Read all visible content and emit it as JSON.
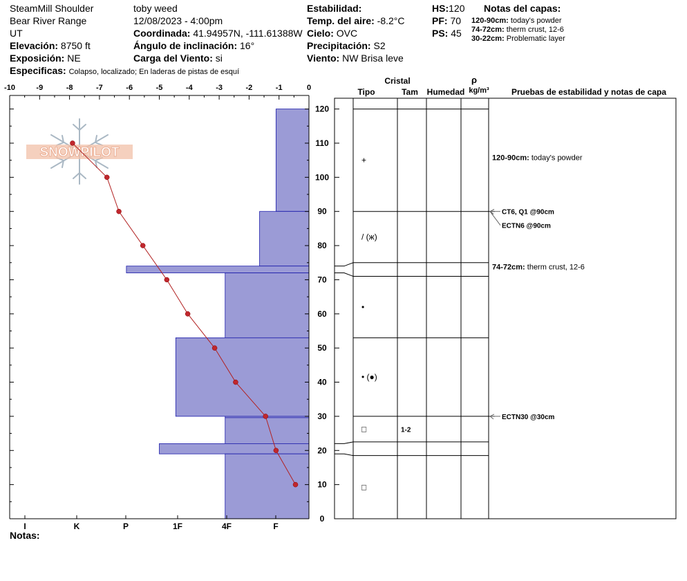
{
  "header": {
    "location": "SteamMill Shoulder",
    "range": "Bear River Range",
    "state": "UT",
    "elevation_label": "Elevación:",
    "elevation": "8750 ft",
    "aspect_label": "Exposición:",
    "aspect": "NE",
    "specifics_label": "Especificas:",
    "specifics": "Colapso, localizado;  En laderas de pistas de esquí",
    "observer": "toby weed",
    "datetime": "12/08/2023 - 4:00pm",
    "coord_label": "Coordinada:",
    "coord": "41.94957N, -111.61388W",
    "slope_label": "Ángulo de inclinación:",
    "slope": "16°",
    "wind_load_label": "Carga del Viento:",
    "wind_load": "si",
    "stability_label": "Estabilidad:",
    "stability": "",
    "air_temp_label": "Temp. del aire:",
    "air_temp": "-8.2°C",
    "sky_label": "Cielo:",
    "sky": "OVC",
    "precip_label": "Precipitación:",
    "precip": "S2",
    "wind_label": "Viento:",
    "wind": "NW Brisa leve",
    "hs_label": "HS:",
    "hs": "120",
    "pf_label": "PF:",
    "pf": "70",
    "ps_label": "PS:",
    "ps": "45",
    "layer_notes_title": "Notas del capas:",
    "layer_notes": [
      {
        "range": "120-90cm:",
        "text": "today's powder"
      },
      {
        "range": "74-72cm:",
        "text": "therm crust, 12-6"
      },
      {
        "range": "30-22cm:",
        "text": "Problematic layer"
      }
    ]
  },
  "logo": {
    "text": "SNOWPILOT"
  },
  "notes_label": "Notas:",
  "columns": {
    "crystal": "Cristal",
    "type": "Tipo",
    "size": "Tam",
    "moisture": "Humedad",
    "density_symbol": "ρ",
    "density_unit": "kg/m³",
    "tests": "Pruebas de estabilidad y notas de capa"
  },
  "chart_data": {
    "type": "profile",
    "temp_axis": {
      "ticks": [
        -10,
        -9,
        -8,
        -7,
        -6,
        -5,
        -4,
        -3,
        -2,
        -1,
        0
      ],
      "range": [
        -10,
        0
      ]
    },
    "depth_axis": {
      "ticks": [
        0,
        10,
        20,
        30,
        40,
        50,
        60,
        70,
        80,
        90,
        100,
        110,
        120
      ],
      "range": [
        0,
        120
      ]
    },
    "hardness_axis": {
      "labels": [
        "I",
        "K",
        "P",
        "1F",
        "4F",
        "F"
      ]
    },
    "hardness_layers": [
      {
        "top": 120,
        "bottom": 90,
        "temp_extent": -1.1
      },
      {
        "top": 90,
        "bottom": 74,
        "temp_extent": -1.65
      },
      {
        "top": 74,
        "bottom": 72,
        "temp_extent": -6.1
      },
      {
        "top": 72,
        "bottom": 53,
        "temp_extent": -2.8
      },
      {
        "top": 53,
        "bottom": 30,
        "temp_extent": -4.45
      },
      {
        "top": 30,
        "bottom": 29.6,
        "temp_extent": -2.8
      },
      {
        "top": 29.6,
        "bottom": 22,
        "temp_extent": -2.8
      },
      {
        "top": 22,
        "bottom": 19,
        "temp_extent": -5.0
      },
      {
        "top": 19,
        "bottom": 0,
        "temp_extent": -2.8
      }
    ],
    "temperature_profile": [
      {
        "depth": 110,
        "temp": -7.9
      },
      {
        "depth": 100,
        "temp": -6.75
      },
      {
        "depth": 90,
        "temp": -6.35
      },
      {
        "depth": 80,
        "temp": -5.55
      },
      {
        "depth": 70,
        "temp": -4.75
      },
      {
        "depth": 60,
        "temp": -4.05
      },
      {
        "depth": 50,
        "temp": -3.15
      },
      {
        "depth": 40,
        "temp": -2.45
      },
      {
        "depth": 30,
        "temp": -1.45
      },
      {
        "depth": 20,
        "temp": -1.1
      },
      {
        "depth": 10,
        "temp": -0.45
      }
    ],
    "layers": [
      {
        "top": 120,
        "bottom": 90,
        "grain": "+",
        "size": ""
      },
      {
        "top": 90,
        "bottom": 75,
        "grain": "/ (ж)",
        "size": ""
      },
      {
        "top": 75,
        "bottom": 71,
        "grain": "",
        "size": ""
      },
      {
        "top": 71,
        "bottom": 53,
        "grain": "•",
        "size": ""
      },
      {
        "top": 53,
        "bottom": 30,
        "grain": "• (●)",
        "size": ""
      },
      {
        "top": 30,
        "bottom": 22.5,
        "grain": "□",
        "size": "1-2"
      },
      {
        "top": 22.5,
        "bottom": 18.5,
        "grain": "",
        "size": ""
      },
      {
        "top": 18.5,
        "bottom": 0,
        "grain": "□",
        "size": ""
      }
    ],
    "stability_tests": [
      {
        "depth": 90,
        "text": "CT6, Q1 @90cm"
      },
      {
        "depth": 90,
        "text": "ECTN6 @90cm"
      },
      {
        "depth": 30,
        "text": "ECTN30 @30cm"
      }
    ],
    "layer_comments": [
      {
        "depth": 105,
        "range": "120-90cm:",
        "text": "today's powder"
      },
      {
        "depth": 73,
        "range": "74-72cm:",
        "text": "therm crust, 12-6"
      }
    ]
  }
}
